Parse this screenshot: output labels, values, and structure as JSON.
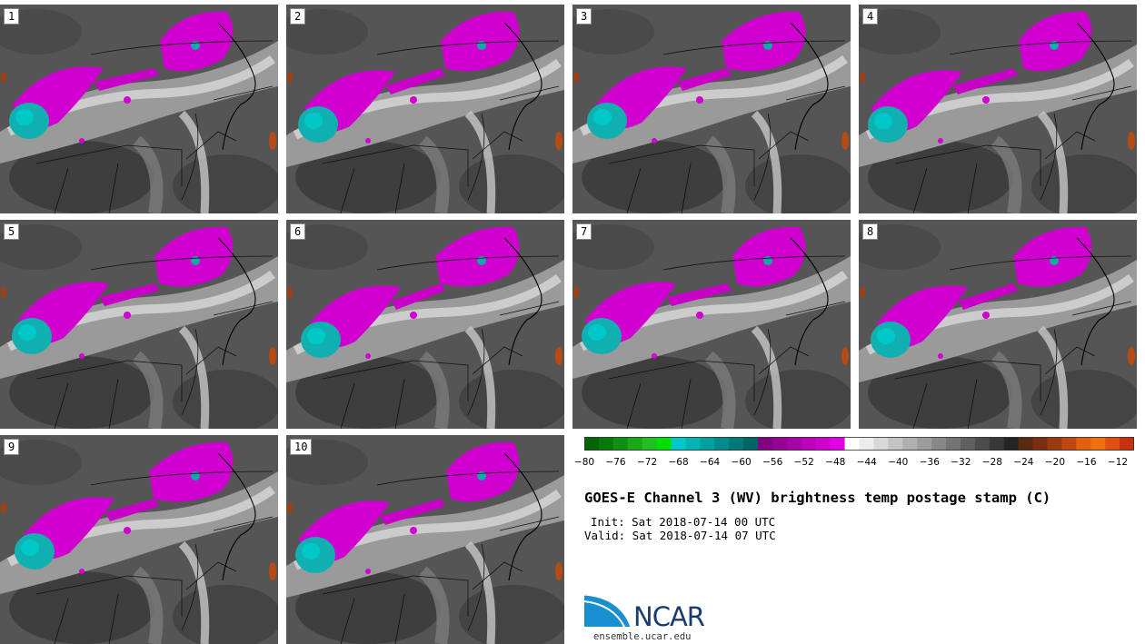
{
  "panels": [
    {
      "label": "1"
    },
    {
      "label": "2"
    },
    {
      "label": "3"
    },
    {
      "label": "4"
    },
    {
      "label": "5"
    },
    {
      "label": "6"
    },
    {
      "label": "7"
    },
    {
      "label": "8"
    },
    {
      "label": "9"
    },
    {
      "label": "10"
    }
  ],
  "colorbar": {
    "ticks": [
      "−80",
      "−76",
      "−72",
      "−68",
      "−64",
      "−60",
      "−56",
      "−52",
      "−48",
      "−44",
      "−40",
      "−36",
      "−32",
      "−28",
      "−24",
      "−20",
      "−16",
      "−12"
    ],
    "colors": [
      "#006400",
      "#087808",
      "#109010",
      "#18a818",
      "#20c020",
      "#00e000",
      "#00c8c8",
      "#00b4b4",
      "#00a0a0",
      "#008c8c",
      "#007878",
      "#006464",
      "#800080",
      "#940094",
      "#a800a8",
      "#bc00bc",
      "#d000d0",
      "#e400e4",
      "#ffffff",
      "#ececec",
      "#d8d8d8",
      "#c4c4c4",
      "#b0b0b0",
      "#9c9c9c",
      "#888888",
      "#747474",
      "#606060",
      "#4c4c4c",
      "#383838",
      "#242424",
      "#5a2a10",
      "#7a3010",
      "#9a3a10",
      "#c04810",
      "#e06010",
      "#f07010",
      "#e05010",
      "#c83010"
    ]
  },
  "text": {
    "title": "GOES-E Channel 3 (WV) brightness temp postage stamp (C)",
    "init": "Init: Sat 2018-07-14 00 UTC",
    "valid": "Valid: Sat 2018-07-14 07 UTC",
    "logo": "NCAR",
    "url": "ensemble.ucar.edu"
  }
}
